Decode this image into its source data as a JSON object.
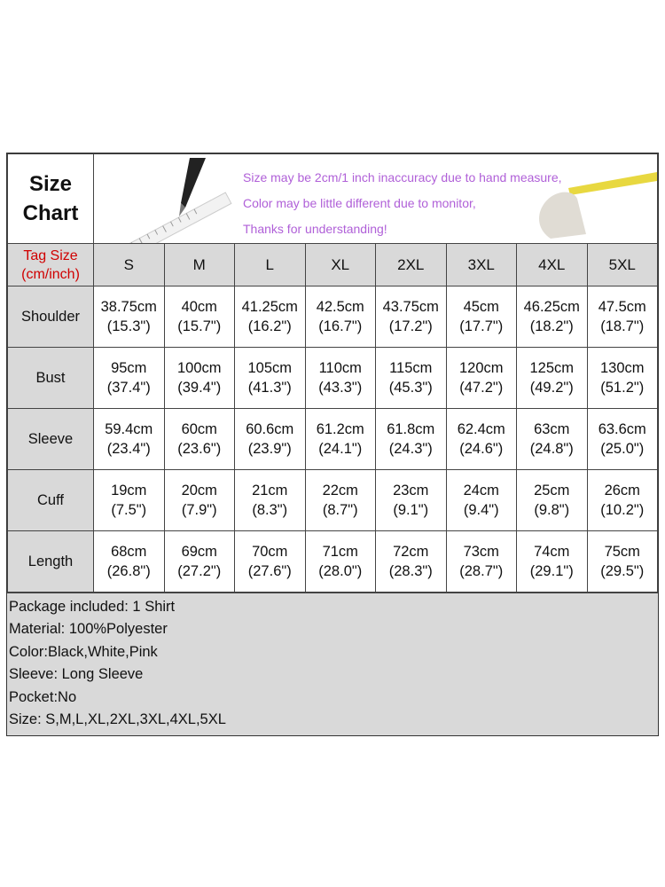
{
  "title_line1": "Size",
  "title_line2": "Chart",
  "banner_notes": [
    "Size may be 2cm/1 inch inaccuracy due to hand measure,",
    "Color may be little different due to monitor,",
    "Thanks for understanding!"
  ],
  "tag_label_line1": "Tag Size",
  "tag_label_line2": "(cm/inch)",
  "sizes": [
    "S",
    "M",
    "L",
    "XL",
    "2XL",
    "3XL",
    "4XL",
    "5XL"
  ],
  "rows": [
    {
      "label": "Shoulder",
      "cm": [
        "38.75cm",
        "40cm",
        "41.25cm",
        "42.5cm",
        "43.75cm",
        "45cm",
        "46.25cm",
        "47.5cm"
      ],
      "inch": [
        "(15.3\")",
        "(15.7\")",
        "(16.2\")",
        "(16.7\")",
        "(17.2\")",
        "(17.7\")",
        "(18.2\")",
        "(18.7\")"
      ]
    },
    {
      "label": "Bust",
      "cm": [
        "95cm",
        "100cm",
        "105cm",
        "110cm",
        "115cm",
        "120cm",
        "125cm",
        "130cm"
      ],
      "inch": [
        "(37.4\")",
        "(39.4\")",
        "(41.3\")",
        "(43.3\")",
        "(45.3\")",
        "(47.2\")",
        "(49.2\")",
        "(51.2\")"
      ]
    },
    {
      "label": "Sleeve",
      "cm": [
        "59.4cm",
        "60cm",
        "60.6cm",
        "61.2cm",
        "61.8cm",
        "62.4cm",
        "63cm",
        "63.6cm"
      ],
      "inch": [
        "(23.4\")",
        "(23.6\")",
        "(23.9\")",
        "(24.1\")",
        "(24.3\")",
        "(24.6\")",
        "(24.8\")",
        "(25.0\")"
      ]
    },
    {
      "label": "Cuff",
      "cm": [
        "19cm",
        "20cm",
        "21cm",
        "22cm",
        "23cm",
        "24cm",
        "25cm",
        "26cm"
      ],
      "inch": [
        "(7.5\")",
        "(7.9\")",
        "(8.3\")",
        "(8.7\")",
        "(9.1\")",
        "(9.4\")",
        "(9.8\")",
        "(10.2\")"
      ]
    },
    {
      "label": "Length",
      "cm": [
        "68cm",
        "69cm",
        "70cm",
        "71cm",
        "72cm",
        "73cm",
        "74cm",
        "75cm"
      ],
      "inch": [
        "(26.8\")",
        "(27.2\")",
        "(27.6\")",
        "(28.0\")",
        "(28.3\")",
        "(28.7\")",
        "(29.1\")",
        "(29.5\")"
      ]
    }
  ],
  "details": [
    "Package included: 1 Shirt",
    "Material: 100%Polyester",
    "Color:Black,White,Pink",
    "Sleeve: Long Sleeve",
    "Pocket:No",
    "Size: S,M,L,XL,2XL,3XL,4XL,5XL"
  ],
  "colors": {
    "tag_label": "#d00000",
    "banner_note": "#b060d8",
    "label_bg": "#d9d9d9"
  }
}
